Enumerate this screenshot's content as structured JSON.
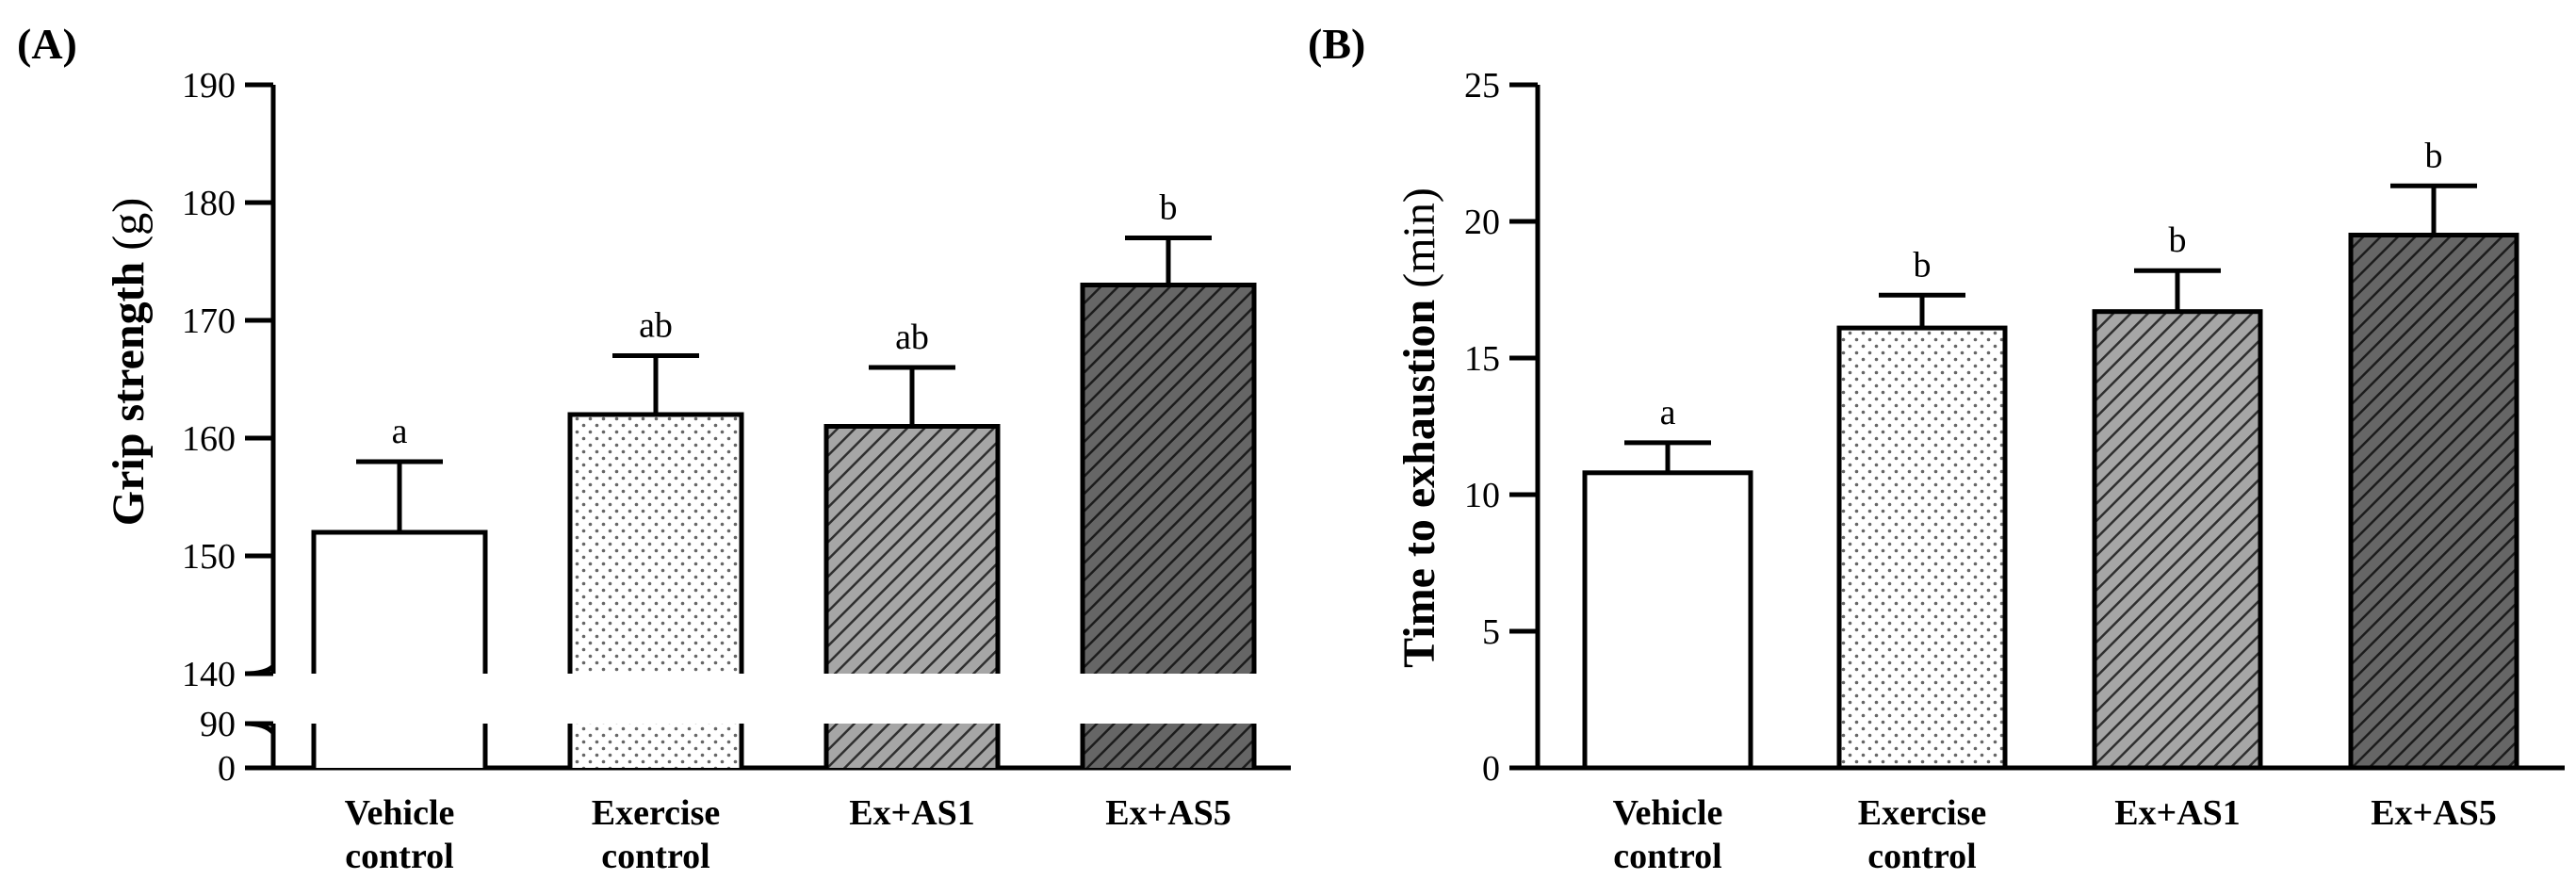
{
  "chart_data": [
    {
      "panel": "(A)",
      "type": "bar",
      "ylabel_main": "Grip strength",
      "ylabel_unit": "(g)",
      "categories": [
        [
          "Vehicle",
          "control"
        ],
        [
          "Exercise",
          "control"
        ],
        [
          "Ex+AS1"
        ],
        [
          "Ex+AS5"
        ]
      ],
      "values": [
        152,
        162,
        161,
        173
      ],
      "errors": [
        6,
        5,
        5,
        4
      ],
      "significance": [
        "a",
        "ab",
        "ab",
        "b"
      ],
      "ylim_upper": [
        140,
        190
      ],
      "yticks_upper": [
        "140",
        "150",
        "160",
        "170",
        "180",
        "190"
      ],
      "ylim_lower": [
        0,
        90
      ],
      "yticks_lower": [
        "0",
        "90"
      ],
      "axis_break": true
    },
    {
      "panel": "(B)",
      "type": "bar",
      "ylabel_main": "Time to exhaustion",
      "ylabel_unit": "(min)",
      "categories": [
        [
          "Vehicle",
          "control"
        ],
        [
          "Exercise",
          "control"
        ],
        [
          "Ex+AS1"
        ],
        [
          "Ex+AS5"
        ]
      ],
      "values": [
        10.8,
        16.1,
        16.7,
        19.5
      ],
      "errors": [
        1.1,
        1.2,
        1.5,
        1.8
      ],
      "significance": [
        "a",
        "b",
        "b",
        "b"
      ],
      "ylim": [
        0,
        25
      ],
      "yticks": [
        "0",
        "5",
        "10",
        "15",
        "20",
        "25"
      ]
    }
  ],
  "bar_styles": [
    "empty",
    "dots",
    "diag-light",
    "diag-dark"
  ],
  "colors": {
    "dot": "#666666",
    "diag_light_bg": "#9a9a9a",
    "diag_dark_bg": "#5a5a5a",
    "line": "#000000"
  }
}
